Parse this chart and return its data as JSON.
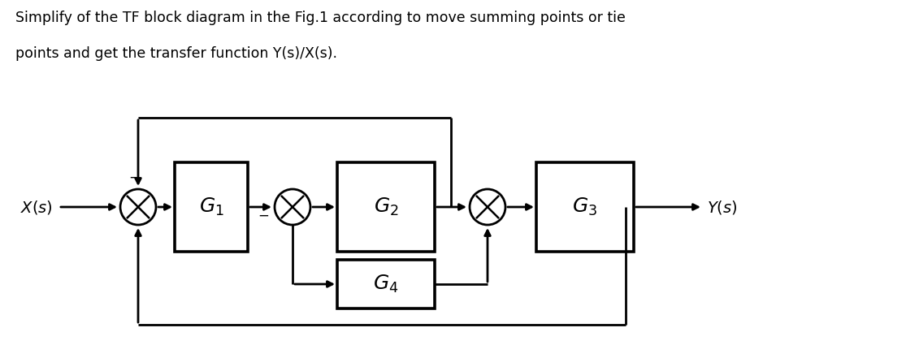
{
  "title_line1": "Simplify of the TF block diagram in the Fig.1 according to move summing points or tie",
  "title_line2": "points and get the transfer function Y(s)/X(s).",
  "background_color": "#ffffff",
  "text_color": "#000000",
  "line_color": "#000000",
  "block_labels": [
    "G_1",
    "G_2",
    "G_3",
    "G_4"
  ],
  "input_label": "X(s)",
  "output_label": "Y(s)",
  "summing_minus_top": "-",
  "summing_minus_bottom": "-",
  "title_fontsize": 13,
  "label_fontsize": 16
}
